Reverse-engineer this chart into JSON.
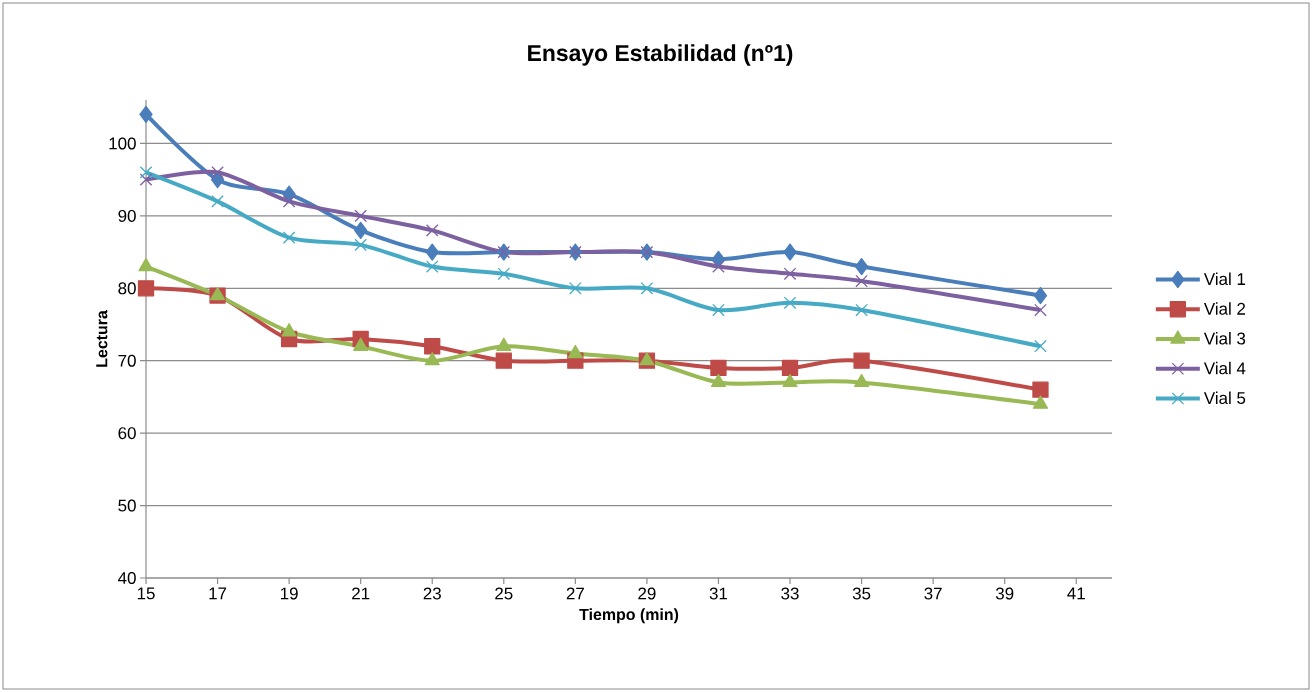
{
  "chart_data": {
    "type": "line",
    "title": "Ensayo Estabilidad (nº1)",
    "xlabel": "Tiempo (min)",
    "ylabel": "Lectura",
    "x": [
      15,
      17,
      19,
      21,
      23,
      25,
      27,
      29,
      31,
      33,
      35,
      40
    ],
    "series": [
      {
        "name": "Vial 1",
        "color": "#4a7ebb",
        "marker": "diamond",
        "values": [
          104,
          95,
          93,
          88,
          85,
          85,
          85,
          85,
          84,
          85,
          83,
          79
        ]
      },
      {
        "name": "Vial 2",
        "color": "#be4b48",
        "marker": "square",
        "values": [
          80,
          79,
          73,
          73,
          72,
          70,
          70,
          70,
          69,
          69,
          70,
          66
        ]
      },
      {
        "name": "Vial 3",
        "color": "#98b954",
        "marker": "triangle",
        "values": [
          83,
          79,
          74,
          72,
          70,
          72,
          71,
          70,
          67,
          67,
          67,
          64
        ]
      },
      {
        "name": "Vial 4",
        "color": "#7d60a0",
        "marker": "cross",
        "values": [
          95,
          96,
          92,
          90,
          88,
          85,
          85,
          85,
          83,
          82,
          81,
          77
        ]
      },
      {
        "name": "Vial 5",
        "color": "#46aac5",
        "marker": "cross",
        "values": [
          96,
          92,
          87,
          86,
          83,
          82,
          80,
          80,
          77,
          78,
          77,
          72
        ]
      }
    ],
    "xlim": [
      15,
      42
    ],
    "ylim": [
      40,
      106
    ],
    "xticks": [
      15,
      17,
      19,
      21,
      23,
      25,
      27,
      29,
      31,
      33,
      35,
      37,
      39,
      41
    ],
    "yticks": [
      40,
      50,
      60,
      70,
      80,
      90,
      100
    ],
    "grid": "y",
    "legend": "right",
    "line_style": "solid"
  }
}
